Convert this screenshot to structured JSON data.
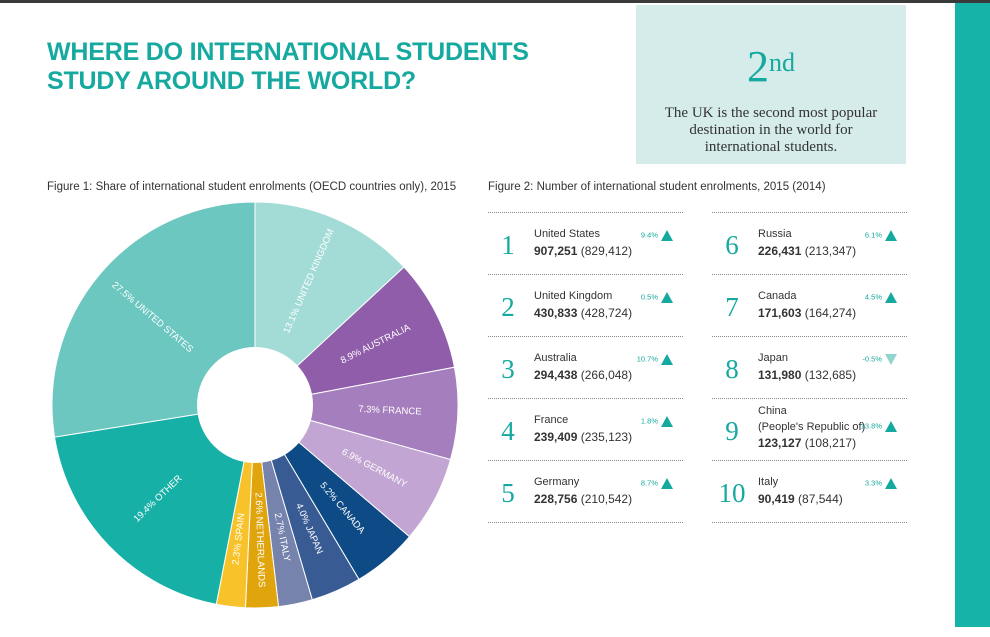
{
  "title": "WHERE DO INTERNATIONAL STUDENTS STUDY AROUND THE WORLD?",
  "callout": {
    "rank": "2",
    "suffix": "nd",
    "text": "The UK is the second most popular destination in the world for international students."
  },
  "colors": {
    "accent": "#16a99f",
    "callout_bg": "#d5ecea",
    "side_bar": "#15b3a8",
    "up_arrow": "#16a99f",
    "down_arrow": "#92d4cf"
  },
  "chart_data": [
    {
      "type": "pie",
      "title": "Figure 1: Share of international student enrolments (OECD countries only), 2015",
      "slices": [
        {
          "label": "13.1% UNITED KINGDOM",
          "value": 13.1,
          "color": "#a3dcd7"
        },
        {
          "label": "8.9% AUSTRALIA",
          "value": 8.9,
          "color": "#8f5da9"
        },
        {
          "label": "7.3% FRANCE",
          "value": 7.3,
          "color": "#a57fbd"
        },
        {
          "label": "6.9% GERMANY",
          "value": 6.9,
          "color": "#c2a5d2"
        },
        {
          "label": "5.2% CANADA",
          "value": 5.2,
          "color": "#0d4a86"
        },
        {
          "label": "4.0% JAPAN",
          "value": 4.0,
          "color": "#395b93"
        },
        {
          "label": "2.7% ITALY",
          "value": 2.7,
          "color": "#7583ad"
        },
        {
          "label": "2.6% NETHERLANDS",
          "value": 2.6,
          "color": "#e0a40d"
        },
        {
          "label": "2.3% SPAIN",
          "value": 2.3,
          "color": "#f8c32a"
        },
        {
          "label": "19.4% OTHER",
          "value": 19.4,
          "color": "#17b0a6"
        },
        {
          "label": "27.5% UNITED STATES",
          "value": 27.5,
          "color": "#6cc7c0"
        }
      ]
    },
    {
      "type": "table",
      "title": "Figure 2: Number of international student enrolments, 2015 (2014)",
      "rows": [
        {
          "rank": "1",
          "country": "United States",
          "value_2015": "907,251",
          "value_2014": "(829,412)",
          "change": "9.4%",
          "direction": "up"
        },
        {
          "rank": "2",
          "country": "United Kingdom",
          "value_2015": "430,833",
          "value_2014": "(428,724)",
          "change": "0.5%",
          "direction": "up"
        },
        {
          "rank": "3",
          "country": "Australia",
          "value_2015": "294,438",
          "value_2014": "(266,048)",
          "change": "10.7%",
          "direction": "up"
        },
        {
          "rank": "4",
          "country": "France",
          "value_2015": "239,409",
          "value_2014": "(235,123)",
          "change": "1.8%",
          "direction": "up"
        },
        {
          "rank": "5",
          "country": "Germany",
          "value_2015": "228,756",
          "value_2014": "(210,542)",
          "change": "8.7%",
          "direction": "up"
        },
        {
          "rank": "6",
          "country": "Russia",
          "value_2015": "226,431",
          "value_2014": "(213,347)",
          "change": "6.1%",
          "direction": "up"
        },
        {
          "rank": "7",
          "country": "Canada",
          "value_2015": "171,603",
          "value_2014": "(164,274)",
          "change": "4.5%",
          "direction": "up"
        },
        {
          "rank": "8",
          "country": "Japan",
          "value_2015": "131,980",
          "value_2014": "(132,685)",
          "change": "-0.5%",
          "direction": "down"
        },
        {
          "rank": "9",
          "country": "China",
          "country_sub": "(People's Republic of)",
          "value_2015": "123,127",
          "value_2014": "(108,217)",
          "change": "13.8%",
          "direction": "up"
        },
        {
          "rank": "10",
          "country": "Italy",
          "value_2015": "90,419",
          "value_2014": "(87,544)",
          "change": "3.3%",
          "direction": "up"
        }
      ]
    }
  ]
}
